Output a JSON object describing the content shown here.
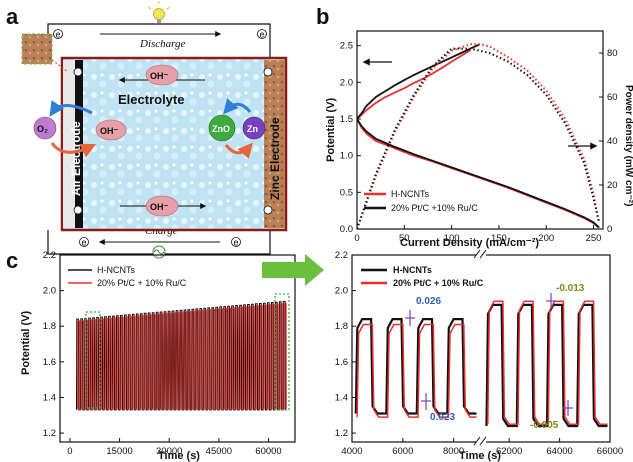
{
  "panel_labels": {
    "a": "a",
    "b": "b",
    "c": "c"
  },
  "schematic": {
    "discharge": "Discharge",
    "charge": "Charge",
    "electrolyte": "Electrolyte",
    "air_electrode": "Air Electrode",
    "zinc_electrode": "Zinc Electrode",
    "oh_top": "OH⁻",
    "oh_mid": "OH⁻",
    "oh_bottom": "OH⁻",
    "o2": "O₂",
    "zno": "ZnO",
    "zn": "Zn",
    "electron": "e",
    "colors": {
      "electrolyte": "#bfe3f2",
      "border": "#8b1a1a",
      "electrode": "#b07a4a",
      "oh_bubble": "#e8a0a8",
      "o2_bubble": "#c07ad0",
      "zno_bubble": "#3faa3f",
      "zn_bubble": "#7a3fbf",
      "arrow_blue": "#2f7fd6",
      "arrow_red": "#e8643a"
    }
  },
  "chart_data": [
    {
      "id": "b",
      "type": "line",
      "xlabel": "Current Density (mA/cm⁻²)",
      "ylabel": "Potential (V)",
      "y2label": "Power density (mW cm⁻²)",
      "xlim": [
        0,
        260
      ],
      "ylim": [
        0,
        2.7
      ],
      "y2lim": [
        0,
        90
      ],
      "xticks": [
        0,
        50,
        100,
        150,
        200,
        250
      ],
      "yticks": [
        0.0,
        0.5,
        1.0,
        1.5,
        2.0,
        2.5
      ],
      "y2ticks": [
        0,
        20,
        40,
        60,
        80
      ],
      "legend": [
        "H-NCNTs",
        "20% Pt/C +10% Ru/C"
      ],
      "legend_position": "lower-left",
      "series": [
        {
          "name": "H-NCNTs",
          "color": "#e8312f",
          "kind": "charge",
          "x": [
            0,
            5,
            10,
            20,
            30,
            40,
            50,
            60,
            70,
            80,
            90,
            100,
            110,
            120
          ],
          "y": [
            1.5,
            1.56,
            1.62,
            1.72,
            1.8,
            1.86,
            1.92,
            1.99,
            2.05,
            2.12,
            2.2,
            2.28,
            2.36,
            2.44
          ]
        },
        {
          "name": "20% Pt/C +10% Ru/C",
          "color": "#111111",
          "kind": "charge",
          "x": [
            0,
            5,
            10,
            20,
            30,
            40,
            50,
            60,
            70,
            80,
            90,
            100,
            110,
            120,
            130
          ],
          "y": [
            1.5,
            1.58,
            1.68,
            1.8,
            1.88,
            1.96,
            2.03,
            2.1,
            2.16,
            2.22,
            2.28,
            2.34,
            2.4,
            2.46,
            2.52
          ]
        },
        {
          "name": "H-NCNTs",
          "color": "#e8312f",
          "kind": "discharge",
          "x": [
            0,
            5,
            10,
            20,
            40,
            60,
            80,
            100,
            120,
            140,
            160,
            180,
            200,
            220,
            240,
            250,
            255
          ],
          "y": [
            1.5,
            1.38,
            1.3,
            1.2,
            1.1,
            1.0,
            0.92,
            0.83,
            0.74,
            0.65,
            0.56,
            0.46,
            0.36,
            0.26,
            0.15,
            0.08,
            0.02
          ]
        },
        {
          "name": "20% Pt/C +10% Ru/C",
          "color": "#111111",
          "kind": "discharge",
          "x": [
            0,
            5,
            10,
            20,
            40,
            60,
            80,
            100,
            120,
            140,
            160,
            180,
            200,
            220,
            240,
            250,
            256
          ],
          "y": [
            1.5,
            1.4,
            1.33,
            1.23,
            1.12,
            1.02,
            0.93,
            0.84,
            0.75,
            0.66,
            0.57,
            0.47,
            0.37,
            0.27,
            0.16,
            0.09,
            0.02
          ]
        },
        {
          "name": "H-NCNTs",
          "color": "#e8312f",
          "kind": "power",
          "x": [
            0,
            20,
            40,
            60,
            80,
            100,
            120,
            130,
            140,
            160,
            180,
            200,
            220,
            240,
            250,
            255
          ],
          "y2": [
            0,
            24,
            44,
            60,
            73,
            81,
            84,
            84,
            83,
            78,
            72,
            63,
            50,
            32,
            16,
            4
          ]
        },
        {
          "name": "20% Pt/C +10% Ru/C",
          "color": "#111111",
          "kind": "power",
          "x": [
            0,
            20,
            40,
            60,
            80,
            100,
            120,
            130,
            140,
            160,
            180,
            200,
            220,
            240,
            250,
            256
          ],
          "y2": [
            0,
            25,
            45,
            61,
            74,
            82,
            82,
            81,
            80,
            76,
            70,
            61,
            48,
            30,
            14,
            3
          ]
        }
      ]
    },
    {
      "id": "c-left",
      "type": "line",
      "xlabel": "Time (s)",
      "ylabel": "Potential (V)",
      "xlim": [
        -3000,
        68000
      ],
      "ylim": [
        1.15,
        2.2
      ],
      "xticks": [
        0,
        15000,
        30000,
        45000,
        60000
      ],
      "yticks": [
        1.2,
        1.4,
        1.6,
        1.8,
        2.0,
        2.2
      ],
      "legend": [
        "H-NCNTs",
        "20% Pt/C + 10% Ru/C"
      ],
      "legend_position": "top-left",
      "cycling": {
        "period_s": 1200,
        "start_s": 2000,
        "end_s": 65000,
        "low_v": 1.33,
        "high_v_start": 1.84,
        "high_v_end": 1.94
      },
      "series": [
        {
          "name": "H-NCNTs",
          "color": "#111111"
        },
        {
          "name": "20% Pt/C + 10% Ru/C",
          "color": "#e8312f"
        }
      ]
    },
    {
      "id": "c-right",
      "type": "line",
      "xlabel": "Time (s)",
      "ylabel": "",
      "ylim": [
        1.15,
        2.2
      ],
      "yticks": [
        1.2,
        1.4,
        1.6,
        1.8,
        2.0,
        2.2
      ],
      "xticks_left": [
        4000,
        6000,
        8000
      ],
      "xticks_right": [
        62000,
        64000,
        66000
      ],
      "legend": [
        "H-NCNTs",
        "20% Pt/C + 10% Ru/C"
      ],
      "legend_position": "top-left",
      "annotations": [
        "0.026",
        "0.023",
        "-0.013",
        "-0.005"
      ],
      "series": [
        {
          "name": "H-NCNTs",
          "color": "#111111",
          "seg1_low": 1.31,
          "seg1_high": 1.84,
          "seg2_low": 1.24,
          "seg2_high": 1.92
        },
        {
          "name": "20% Pt/C + 10% Ru/C",
          "color": "#e8312f",
          "seg1_low": 1.29,
          "seg1_high": 1.81,
          "seg2_low": 1.25,
          "seg2_high": 1.94
        }
      ]
    }
  ]
}
